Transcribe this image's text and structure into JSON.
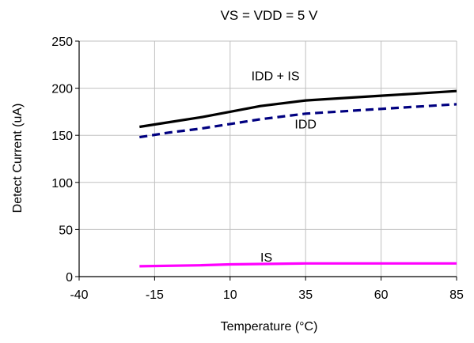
{
  "chart_data": {
    "type": "line",
    "title": "VS = VDD = 5 V",
    "xlabel": "Temperature (°C)",
    "ylabel": "Detect Current (uA)",
    "xlim": [
      -40,
      85
    ],
    "ylim": [
      0,
      250
    ],
    "x_ticks": [
      "-40",
      "-15",
      "10",
      "35",
      "60",
      "85"
    ],
    "y_ticks": [
      "0",
      "50",
      "100",
      "150",
      "200",
      "250"
    ],
    "grid": true,
    "series": [
      {
        "name": "IDD + IS",
        "color": "#000000",
        "dash": "solid",
        "x": [
          -20,
          -10,
          0,
          10,
          20,
          35,
          50,
          60,
          70,
          85
        ],
        "y": [
          159,
          164,
          169,
          175,
          181,
          187,
          190,
          192,
          194,
          197
        ]
      },
      {
        "name": "IDD",
        "color": "#000080",
        "dash": "dashed",
        "x": [
          -20,
          -10,
          0,
          10,
          20,
          35,
          50,
          60,
          70,
          85
        ],
        "y": [
          148,
          153,
          157,
          162,
          167,
          173,
          176,
          178,
          180,
          183
        ]
      },
      {
        "name": "IS",
        "color": "#ff00ff",
        "dash": "solid",
        "x": [
          -20,
          0,
          10,
          35,
          60,
          85
        ],
        "y": [
          11,
          12,
          13,
          14,
          14,
          14
        ]
      }
    ],
    "annotations": [
      {
        "text": "IDD + IS",
        "series": "IDD + IS"
      },
      {
        "text": "IDD",
        "series": "IDD"
      },
      {
        "text": "IS",
        "series": "IS"
      }
    ]
  }
}
